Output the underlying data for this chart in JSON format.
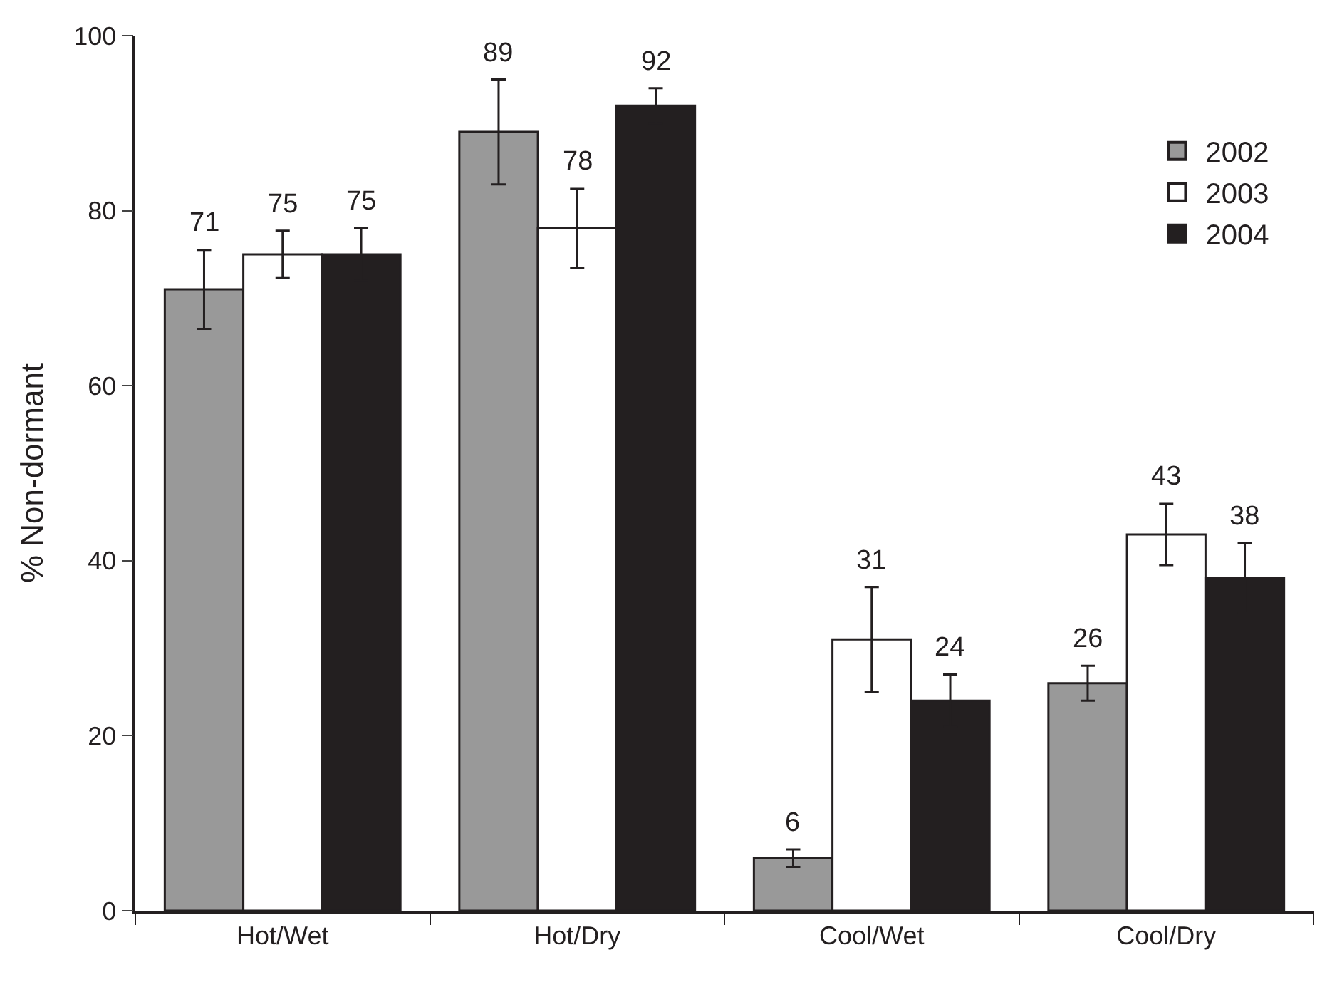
{
  "chart_data": {
    "type": "bar",
    "ylabel": "% Non-dormant",
    "categories": [
      "Hot/Wet",
      "Hot/Dry",
      "Cool/Wet",
      "Cool/Dry"
    ],
    "series": [
      {
        "name": "2002",
        "color": "#999999",
        "values": [
          71,
          89,
          6,
          26
        ],
        "errors": [
          4.5,
          6,
          1,
          2
        ]
      },
      {
        "name": "2003",
        "color": "#ffffff",
        "values": [
          75,
          78,
          31,
          43
        ],
        "errors": [
          2.7,
          4.5,
          6,
          3.5
        ]
      },
      {
        "name": "2004",
        "color": "#231f20",
        "values": [
          75,
          92,
          24,
          38
        ],
        "errors": [
          3,
          2,
          3,
          4
        ]
      }
    ],
    "ylim": [
      0,
      100
    ],
    "yticks": [
      0,
      20,
      40,
      60,
      80,
      100
    ],
    "legend": "top right",
    "data_labels": true
  }
}
